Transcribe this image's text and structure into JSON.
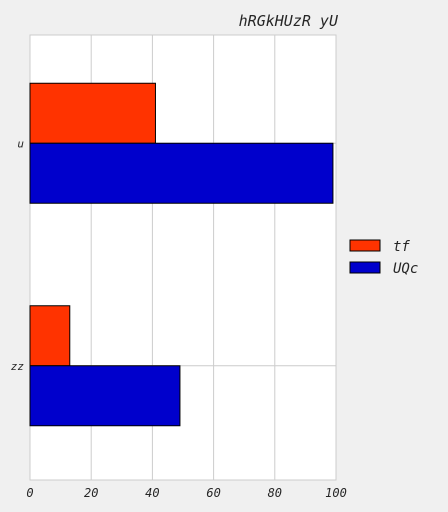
{
  "chart_data": {
    "type": "bar",
    "orientation": "horizontal",
    "title": "hRGkHUzR yU",
    "xlabel": "",
    "ylabel": "",
    "categories": [
      "u",
      "zz"
    ],
    "series": [
      {
        "name": "tf",
        "values": [
          41,
          13
        ],
        "color": "#ff3300"
      },
      {
        "name": "UQc",
        "values": [
          99,
          49
        ],
        "color": "#0000cc"
      }
    ],
    "xlim": [
      0,
      100
    ],
    "xticks": [
      0,
      20,
      40,
      60,
      80,
      100
    ],
    "grid": true,
    "legend_position": "right",
    "background_color": "#f0f0f0",
    "plot_background_color": "#ffffff",
    "grid_color": "#cccccc"
  }
}
